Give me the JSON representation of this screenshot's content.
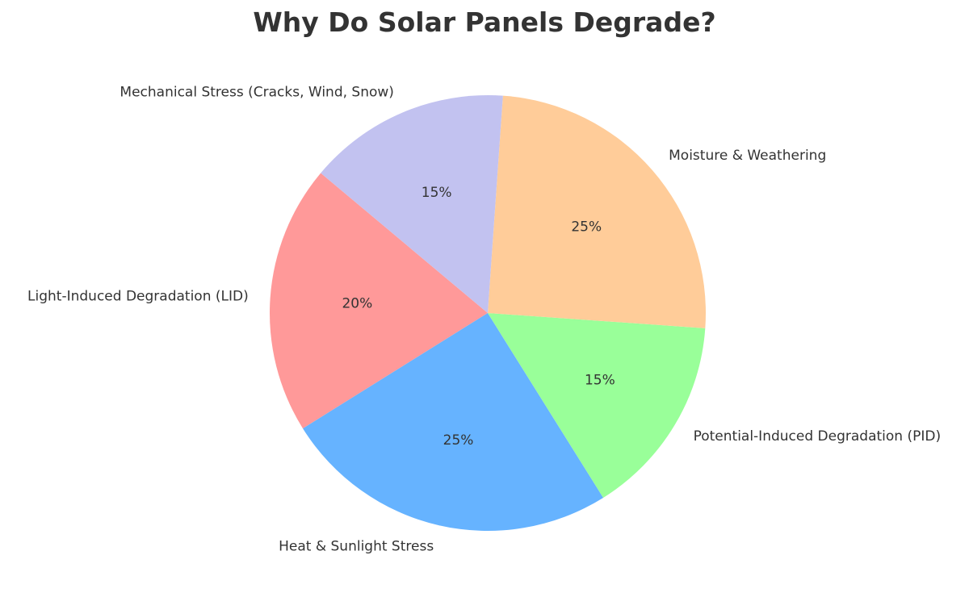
{
  "chart_data": {
    "type": "pie",
    "title": "Why Do Solar Panels Degrade?",
    "start_angle_deg": 140,
    "direction": "counterclockwise",
    "labels": [
      "Light-Induced Degradation (LID)",
      "Heat & Sunlight Stress",
      "Potential-Induced Degradation (PID)",
      "Moisture & Weathering",
      "Mechanical Stress (Cracks, Wind, Snow)"
    ],
    "values": [
      20,
      25,
      15,
      25,
      15
    ],
    "pct_labels": [
      "20%",
      "25%",
      "15%",
      "25%",
      "15%"
    ],
    "colors": [
      "#ff9999",
      "#66b3ff",
      "#99ff99",
      "#ffcc99",
      "#c2c2f0"
    ]
  }
}
